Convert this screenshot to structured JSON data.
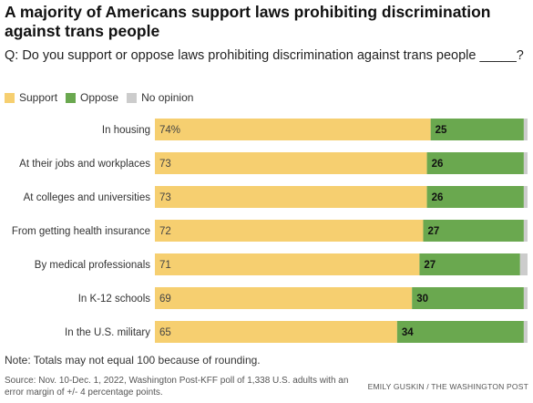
{
  "title": "A majority of Americans support laws prohibiting discrimination against trans people",
  "question": "Q: Do you support or oppose laws prohibiting discrimination against trans people _____?",
  "legend": [
    {
      "label": "Support",
      "color": "#f6cf70"
    },
    {
      "label": "Oppose",
      "color": "#6aa84f"
    },
    {
      "label": "No opinion",
      "color": "#cccccc"
    }
  ],
  "chart_data": {
    "type": "bar",
    "orientation": "horizontal",
    "stacked": true,
    "categories": [
      "In housing",
      "At their jobs and workplaces",
      "At colleges and universities",
      "From getting health insurance",
      "By medical professionals",
      "In K-12 schools",
      "In the U.S. military"
    ],
    "series": [
      {
        "name": "Support",
        "color": "#f6cf70",
        "values": [
          74,
          73,
          73,
          72,
          71,
          69,
          65
        ],
        "labels": [
          "74%",
          "73",
          "73",
          "72",
          "71",
          "69",
          "65"
        ]
      },
      {
        "name": "Oppose",
        "color": "#6aa84f",
        "values": [
          25,
          26,
          26,
          27,
          27,
          30,
          34
        ],
        "labels": [
          "25",
          "26",
          "26",
          "27",
          "27",
          "30",
          "34"
        ]
      },
      {
        "name": "No opinion",
        "color": "#cccccc",
        "values": [
          1,
          1,
          1,
          1,
          2,
          1,
          1
        ],
        "labels": [
          "",
          "",
          "",
          "",
          "",
          "",
          ""
        ]
      }
    ],
    "xlim": [
      0,
      100
    ]
  },
  "note": "Note: Totals may not equal 100 because of rounding.",
  "source": "Source: Nov. 10-Dec. 1, 2022, Washington Post-KFF poll of 1,338 U.S. adults with an error margin of +/- 4 percentage points.",
  "credit": "EMILY GUSKIN / THE WASHINGTON POST"
}
